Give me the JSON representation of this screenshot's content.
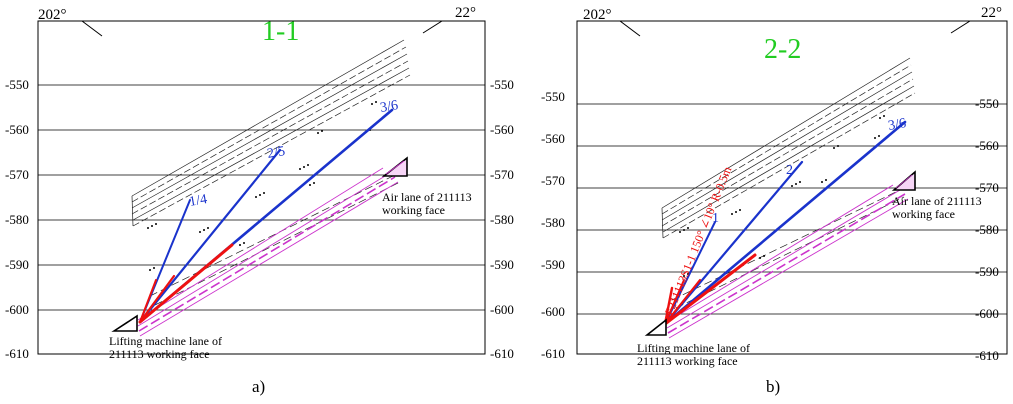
{
  "panels": [
    {
      "id": "a",
      "section_title": "1-1",
      "bearing_left": "202°",
      "bearing_right": "22°",
      "left_ticks": [
        "-550",
        "-560",
        "-570",
        "-580",
        "-590",
        "-600",
        "-610"
      ],
      "right_ticks": [
        "-550",
        "-560",
        "-570",
        "-580",
        "-590",
        "-600",
        "-610"
      ],
      "label_air_lane": [
        "Air lane of 211113",
        "working face"
      ],
      "label_lift_lane": [
        "Lifting machine lane of",
        "211113 working face"
      ],
      "borehole_labels": [
        "1/4",
        "2/5",
        "3/6"
      ],
      "subcaption": "a)",
      "colors": {
        "boreholes": "#1a33cc",
        "grout": "#ee1111",
        "seam": "#cc33cc",
        "title": "#22cc22"
      }
    },
    {
      "id": "b",
      "section_title": "2-2",
      "bearing_left": "202°",
      "bearing_right": "22°",
      "left_ticks": [
        "-550",
        "-560",
        "-570",
        "-580",
        "-590",
        "-600",
        "-610"
      ],
      "right_ticks": [
        "-550",
        "-560",
        "-570",
        "-580",
        "-590",
        "-600",
        "-610"
      ],
      "label_air_lane": [
        "Air lane of 211113",
        "working face"
      ],
      "label_lift_lane": [
        "Lifting machine lane of",
        "211113 working face"
      ],
      "borehole_labels": [
        "1",
        "2",
        "3/6"
      ],
      "annotation": "F211113S1-1 150° ∠10° R-0.5m",
      "subcaption": "b)",
      "colors": {
        "boreholes": "#1a33cc",
        "grout": "#ee1111",
        "seam": "#cc33cc",
        "title": "#22cc22"
      }
    }
  ]
}
